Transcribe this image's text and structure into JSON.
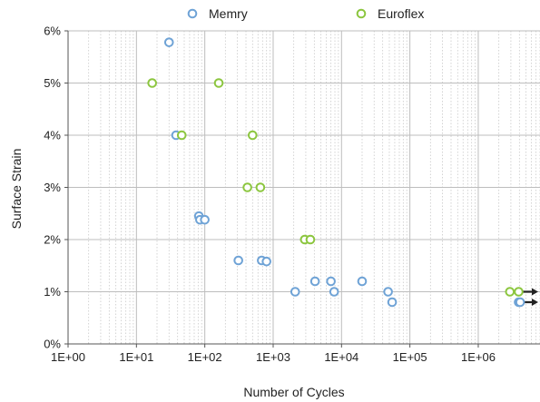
{
  "chart_data": {
    "type": "scatter",
    "xlabel": "Number of Cycles",
    "ylabel": "Surface Strain",
    "x_scale": "log",
    "xlim": [
      1,
      8000000
    ],
    "ylim": [
      0,
      6
    ],
    "x_ticks": [
      "1E+00",
      "1E+01",
      "1E+02",
      "1E+03",
      "1E+04",
      "1E+05",
      "1E+06"
    ],
    "y_ticks": [
      "0%",
      "1%",
      "2%",
      "3%",
      "4%",
      "5%",
      "6%"
    ],
    "grid": true,
    "legend_position": "top",
    "series": [
      {
        "name": "Memry",
        "color": "#6fa3d6",
        "points": [
          {
            "x": 30,
            "y": 5.78
          },
          {
            "x": 38,
            "y": 4.0
          },
          {
            "x": 82,
            "y": 2.45
          },
          {
            "x": 85,
            "y": 2.38
          },
          {
            "x": 100,
            "y": 2.38
          },
          {
            "x": 310,
            "y": 1.6
          },
          {
            "x": 680,
            "y": 1.6
          },
          {
            "x": 800,
            "y": 1.58
          },
          {
            "x": 2100,
            "y": 1.0
          },
          {
            "x": 4100,
            "y": 1.2
          },
          {
            "x": 7000,
            "y": 1.2
          },
          {
            "x": 7800,
            "y": 1.0
          },
          {
            "x": 20000,
            "y": 1.2
          },
          {
            "x": 48000,
            "y": 1.0
          },
          {
            "x": 55000,
            "y": 0.8
          },
          {
            "x": 3900000,
            "y": 0.8,
            "runout": true
          },
          {
            "x": 4100000,
            "y": 0.8
          }
        ]
      },
      {
        "name": "Euroflex",
        "color": "#8cc63f",
        "points": [
          {
            "x": 17,
            "y": 5.0
          },
          {
            "x": 46,
            "y": 4.0
          },
          {
            "x": 160,
            "y": 5.0
          },
          {
            "x": 420,
            "y": 3.0
          },
          {
            "x": 500,
            "y": 4.0
          },
          {
            "x": 650,
            "y": 3.0
          },
          {
            "x": 2900,
            "y": 2.0
          },
          {
            "x": 3500,
            "y": 2.0
          },
          {
            "x": 2900000,
            "y": 1.0
          },
          {
            "x": 3900000,
            "y": 1.0,
            "runout": true
          }
        ]
      }
    ]
  }
}
